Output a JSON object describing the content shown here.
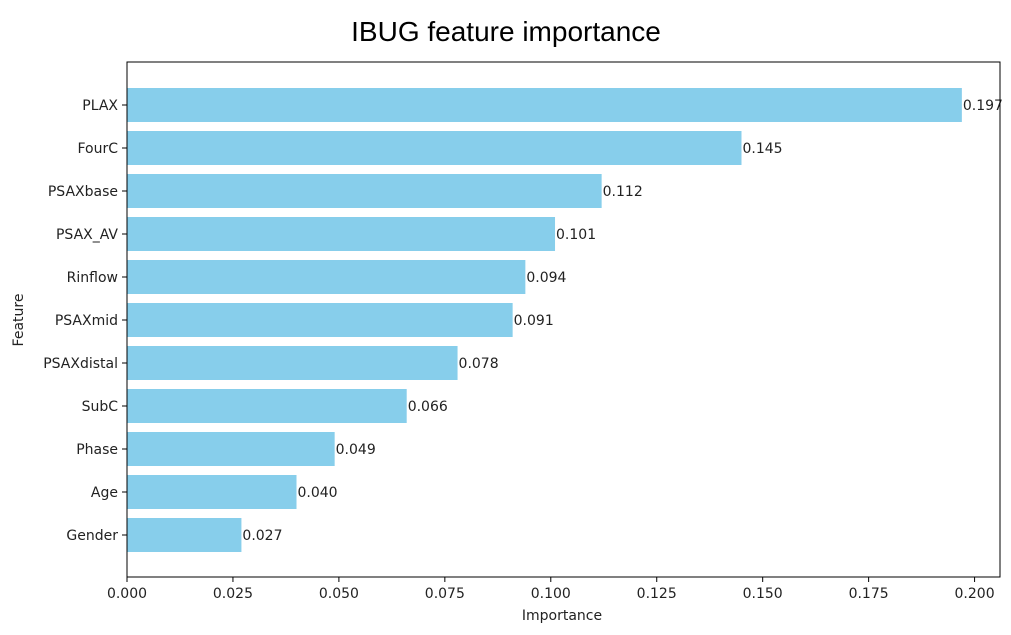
{
  "chart_data": {
    "type": "bar",
    "orientation": "horizontal",
    "title": "IBUG feature importance",
    "xlabel": "Importance",
    "ylabel": "Feature",
    "categories": [
      "PLAX",
      "FourC",
      "PSAXbase",
      "PSAX_AV",
      "Rinflow",
      "PSAXmid",
      "PSAXdistal",
      "SubC",
      "Phase",
      "Age",
      "Gender"
    ],
    "values": [
      0.197,
      0.145,
      0.112,
      0.101,
      0.094,
      0.091,
      0.078,
      0.066,
      0.049,
      0.04,
      0.027
    ],
    "value_labels": [
      "0.197",
      "0.145",
      "0.112",
      "0.101",
      "0.094",
      "0.091",
      "0.078",
      "0.066",
      "0.049",
      "0.040",
      "0.027"
    ],
    "xlim": [
      0,
      0.206
    ],
    "xticks": [
      0.0,
      0.025,
      0.05,
      0.075,
      0.1,
      0.125,
      0.15,
      0.175,
      0.2
    ],
    "xtick_labels": [
      "0.000",
      "0.025",
      "0.050",
      "0.075",
      "0.100",
      "0.125",
      "0.150",
      "0.175",
      "0.200"
    ],
    "bar_color": "#87ceeb",
    "grid": false
  }
}
